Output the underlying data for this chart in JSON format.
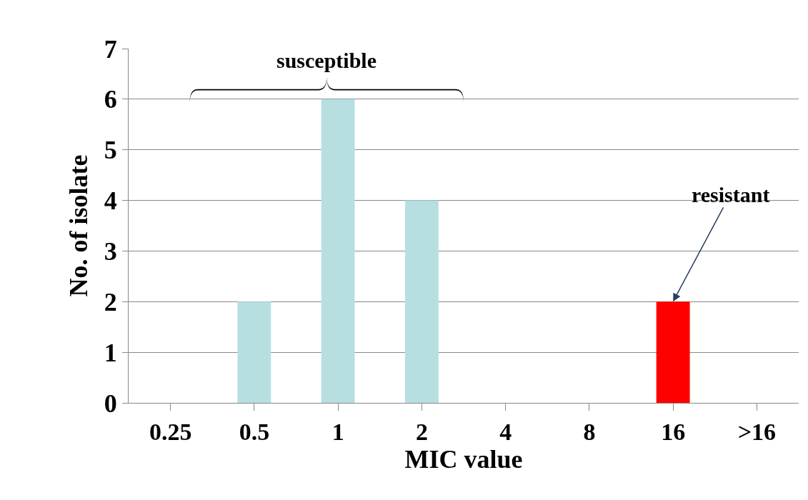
{
  "chart_data": {
    "type": "bar",
    "xlabel": "MIC value",
    "ylabel": "No. of isolate",
    "categories": [
      "0.25",
      "0.5",
      "1",
      "2",
      "4",
      "8",
      "16",
      ">16"
    ],
    "values": [
      0,
      2,
      6,
      4,
      0,
      0,
      2,
      0
    ],
    "colors": [
      "#b7dfe2",
      "#b7dfe2",
      "#b7dfe2",
      "#b7dfe2",
      "#b7dfe2",
      "#b7dfe2",
      "#ff0000",
      "#b7dfe2"
    ],
    "ylim": [
      0,
      7
    ],
    "yticks": [
      0,
      1,
      2,
      3,
      4,
      5,
      6,
      7
    ],
    "grid": "y",
    "legend": false,
    "annotations": [
      "susceptible",
      {
        "text": "resistant",
        "x": "16",
        "y": 2
      }
    ]
  }
}
